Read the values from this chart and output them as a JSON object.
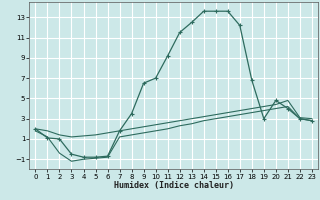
{
  "xlabel": "Humidex (Indice chaleur)",
  "bg_color": "#cce8e8",
  "grid_color": "#ffffff",
  "line_color": "#2e6b5e",
  "xlim": [
    -0.5,
    23.5
  ],
  "ylim": [
    -2.0,
    14.5
  ],
  "xticks": [
    0,
    1,
    2,
    3,
    4,
    5,
    6,
    7,
    8,
    9,
    10,
    11,
    12,
    13,
    14,
    15,
    16,
    17,
    18,
    19,
    20,
    21,
    22,
    23
  ],
  "yticks": [
    -1,
    1,
    3,
    5,
    7,
    9,
    11,
    13
  ],
  "main_x": [
    0,
    1,
    2,
    3,
    4,
    5,
    6,
    7,
    8,
    9,
    10,
    11,
    12,
    13,
    14,
    15,
    16,
    17,
    18,
    19,
    20,
    21,
    22,
    23
  ],
  "main_y": [
    2.0,
    1.1,
    1.0,
    -0.5,
    -0.8,
    -0.8,
    -0.7,
    1.8,
    3.5,
    6.5,
    7.0,
    9.2,
    11.5,
    12.5,
    13.6,
    13.6,
    13.6,
    12.2,
    6.8,
    3.0,
    4.8,
    4.0,
    3.0,
    2.8
  ],
  "line_upper_x": [
    0,
    1,
    2,
    3,
    4,
    5,
    6,
    7,
    8,
    9,
    10,
    11,
    12,
    13,
    14,
    15,
    16,
    17,
    18,
    19,
    20,
    21,
    22,
    23
  ],
  "line_upper_y": [
    2.0,
    1.8,
    1.4,
    1.2,
    1.3,
    1.4,
    1.6,
    1.8,
    2.0,
    2.2,
    2.4,
    2.6,
    2.8,
    3.0,
    3.2,
    3.4,
    3.6,
    3.8,
    4.0,
    4.2,
    4.4,
    4.8,
    3.1,
    3.0
  ],
  "line_lower_x": [
    0,
    1,
    2,
    3,
    4,
    5,
    6,
    7,
    8,
    9,
    10,
    11,
    12,
    13,
    14,
    15,
    16,
    17,
    18,
    19,
    20,
    21,
    22,
    23
  ],
  "line_lower_y": [
    1.8,
    1.2,
    -0.4,
    -1.2,
    -1.0,
    -0.9,
    -0.8,
    1.2,
    1.4,
    1.6,
    1.8,
    2.0,
    2.3,
    2.5,
    2.8,
    3.0,
    3.2,
    3.4,
    3.6,
    3.8,
    4.0,
    4.2,
    3.0,
    2.8
  ]
}
